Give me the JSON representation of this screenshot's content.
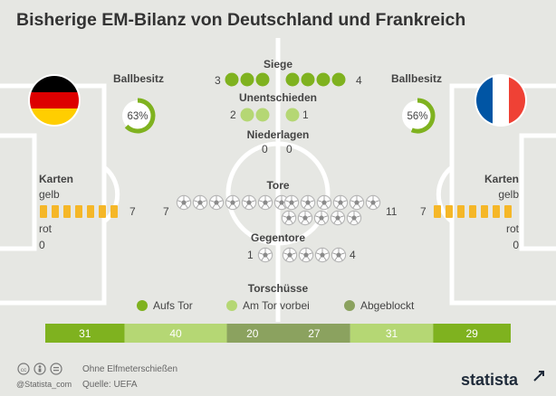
{
  "title": "Bisherige EM-Bilanz von Deutschland und Frankreich",
  "colors": {
    "background": "#e6e7e3",
    "pitch_lines": "#ffffff",
    "dark_green": "#7fb21f",
    "light_green": "#b5d774",
    "olive_green": "#8ba25f",
    "card_yellow": "#f5b728",
    "text": "#444444",
    "title": "#333333",
    "empty_slot": "#d3d5cf"
  },
  "teams": {
    "left": {
      "flag": "germany-flag",
      "possession_label": "Ballbesitz",
      "possession_text": "63%",
      "possession": 0.63
    },
    "right": {
      "flag": "france-flag",
      "possession_label": "Ballbesitz",
      "possession_text": "56%",
      "possession": 0.56
    }
  },
  "cards": {
    "label": "Karten",
    "yellow_label": "gelb",
    "red_label": "rot",
    "left": {
      "yellow_text": "7",
      "red_text": "0",
      "yellow": 7,
      "red": 0
    },
    "right": {
      "yellow_text": "7",
      "red_text": "0",
      "yellow": 7,
      "red": 0
    }
  },
  "stats": {
    "siege": {
      "label": "Siege",
      "left_text": "3",
      "right_text": "4"
    },
    "unentschieden": {
      "label": "Unentschieden",
      "left_text": "2",
      "right_text": "1"
    },
    "niederlagen": {
      "label": "Niederlagen",
      "left_text": "0",
      "right_text": "0"
    },
    "tore": {
      "label": "Tore",
      "left_text": "7",
      "right_text": "11"
    },
    "gegentore": {
      "label": "Gegentore",
      "left_text": "1",
      "right_text": "4"
    }
  },
  "torschuesse": {
    "label": "Torschüsse",
    "legend": [
      {
        "label": "Aufs Tor",
        "color": "#7fb21f"
      },
      {
        "label": "Am Tor vorbei",
        "color": "#b5d774"
      },
      {
        "label": "Abgeblockt",
        "color": "#8ba25f"
      }
    ],
    "left_texts": [
      "31",
      "40",
      "20"
    ],
    "right_texts": [
      "27",
      "31",
      "29"
    ]
  },
  "footer": {
    "note": "Ohne Elfmeterschießen",
    "source": "Quelle: UEFA",
    "handle": "@Statista_com",
    "brand": "statista"
  },
  "chart_data": {
    "type": "table",
    "title": "Bisherige EM-Bilanz von Deutschland und Frankreich",
    "teams": [
      "left",
      "right"
    ],
    "metrics": [
      {
        "name": "Siege",
        "left": 3,
        "right": 4
      },
      {
        "name": "Unentschieden",
        "left": 2,
        "right": 1
      },
      {
        "name": "Niederlagen",
        "left": 0,
        "right": 0
      },
      {
        "name": "Tore",
        "left": 7,
        "right": 11
      },
      {
        "name": "Gegentore",
        "left": 1,
        "right": 4
      },
      {
        "name": "Ballbesitz",
        "left": 63,
        "right": 56
      },
      {
        "name": "gelb",
        "left": 7,
        "right": 7
      },
      {
        "name": "rot",
        "left": 0,
        "right": 0
      }
    ],
    "shots": {
      "categories": [
        "Aufs Tor",
        "Am Tor vorbei",
        "Abgeblockt"
      ],
      "left": [
        31,
        40,
        20
      ],
      "right": [
        29,
        31,
        27
      ]
    }
  }
}
